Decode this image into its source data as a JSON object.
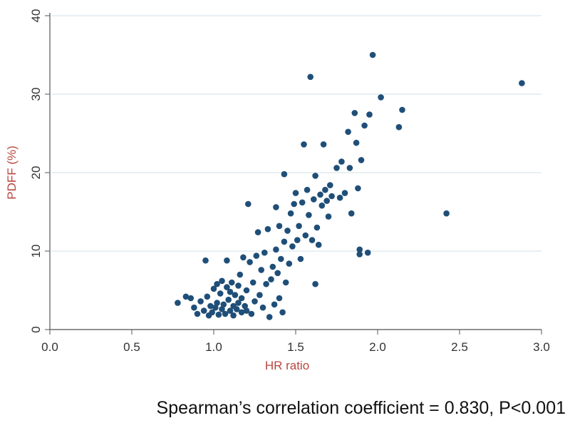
{
  "chart_data": {
    "type": "scatter",
    "title": "",
    "xlabel": "HR ratio",
    "ylabel": "PDFF (%)",
    "xlim": [
      0.0,
      3.0
    ],
    "ylim": [
      0,
      40
    ],
    "xticks": [
      "0.0",
      "0.5",
      "1.0",
      "1.5",
      "2.0",
      "2.5",
      "3.0"
    ],
    "yticks": [
      "0",
      "10",
      "20",
      "30",
      "40"
    ],
    "grid": true,
    "marker_color": "#1f4f78",
    "grid_color": "#d9e6ee",
    "points": [
      [
        0.78,
        3.4
      ],
      [
        0.83,
        4.2
      ],
      [
        0.86,
        4.0
      ],
      [
        0.88,
        2.8
      ],
      [
        0.9,
        2.0
      ],
      [
        0.92,
        3.6
      ],
      [
        0.94,
        2.4
      ],
      [
        0.95,
        8.8
      ],
      [
        0.96,
        4.2
      ],
      [
        0.97,
        1.8
      ],
      [
        0.98,
        3.0
      ],
      [
        0.99,
        2.2
      ],
      [
        1.0,
        5.2
      ],
      [
        1.01,
        2.8
      ],
      [
        1.02,
        3.4
      ],
      [
        1.02,
        5.8
      ],
      [
        1.03,
        1.9
      ],
      [
        1.04,
        4.6
      ],
      [
        1.05,
        2.6
      ],
      [
        1.05,
        6.2
      ],
      [
        1.06,
        3.2
      ],
      [
        1.07,
        2.0
      ],
      [
        1.08,
        5.4
      ],
      [
        1.08,
        8.8
      ],
      [
        1.09,
        3.8
      ],
      [
        1.1,
        2.4
      ],
      [
        1.1,
        4.8
      ],
      [
        1.11,
        6.0
      ],
      [
        1.12,
        3.0
      ],
      [
        1.12,
        1.8
      ],
      [
        1.13,
        4.4
      ],
      [
        1.14,
        2.6
      ],
      [
        1.15,
        5.6
      ],
      [
        1.15,
        3.4
      ],
      [
        1.16,
        7.0
      ],
      [
        1.17,
        2.2
      ],
      [
        1.17,
        4.0
      ],
      [
        1.18,
        9.2
      ],
      [
        1.19,
        3.0
      ],
      [
        1.2,
        2.4
      ],
      [
        1.2,
        5.0
      ],
      [
        1.21,
        16.0
      ],
      [
        1.22,
        8.6
      ],
      [
        1.23,
        2.0
      ],
      [
        1.24,
        6.0
      ],
      [
        1.25,
        3.6
      ],
      [
        1.26,
        9.4
      ],
      [
        1.27,
        12.4
      ],
      [
        1.28,
        4.4
      ],
      [
        1.29,
        7.6
      ],
      [
        1.3,
        2.8
      ],
      [
        1.31,
        9.8
      ],
      [
        1.32,
        5.8
      ],
      [
        1.33,
        12.8
      ],
      [
        1.34,
        1.6
      ],
      [
        1.35,
        6.4
      ],
      [
        1.36,
        8.0
      ],
      [
        1.37,
        3.2
      ],
      [
        1.38,
        10.2
      ],
      [
        1.38,
        15.6
      ],
      [
        1.39,
        7.2
      ],
      [
        1.4,
        4.0
      ],
      [
        1.4,
        13.2
      ],
      [
        1.41,
        9.0
      ],
      [
        1.42,
        2.2
      ],
      [
        1.43,
        11.2
      ],
      [
        1.43,
        19.8
      ],
      [
        1.44,
        6.0
      ],
      [
        1.45,
        12.6
      ],
      [
        1.46,
        8.4
      ],
      [
        1.47,
        14.8
      ],
      [
        1.48,
        10.6
      ],
      [
        1.49,
        16.0
      ],
      [
        1.5,
        17.4
      ],
      [
        1.51,
        11.4
      ],
      [
        1.52,
        13.2
      ],
      [
        1.53,
        9.0
      ],
      [
        1.54,
        16.2
      ],
      [
        1.55,
        23.6
      ],
      [
        1.56,
        12.0
      ],
      [
        1.57,
        17.8
      ],
      [
        1.58,
        14.6
      ],
      [
        1.59,
        32.2
      ],
      [
        1.6,
        11.4
      ],
      [
        1.61,
        16.6
      ],
      [
        1.62,
        5.8
      ],
      [
        1.62,
        19.6
      ],
      [
        1.63,
        13.0
      ],
      [
        1.64,
        10.8
      ],
      [
        1.65,
        17.2
      ],
      [
        1.66,
        15.8
      ],
      [
        1.67,
        23.6
      ],
      [
        1.68,
        17.8
      ],
      [
        1.69,
        16.4
      ],
      [
        1.7,
        14.4
      ],
      [
        1.71,
        18.4
      ],
      [
        1.72,
        17.0
      ],
      [
        1.75,
        20.6
      ],
      [
        1.77,
        16.8
      ],
      [
        1.78,
        21.4
      ],
      [
        1.8,
        17.4
      ],
      [
        1.82,
        25.2
      ],
      [
        1.83,
        20.6
      ],
      [
        1.84,
        14.8
      ],
      [
        1.86,
        27.6
      ],
      [
        1.87,
        23.8
      ],
      [
        1.88,
        18.0
      ],
      [
        1.89,
        10.2
      ],
      [
        1.89,
        9.6
      ],
      [
        1.9,
        21.6
      ],
      [
        1.92,
        26.0
      ],
      [
        1.94,
        9.8
      ],
      [
        1.95,
        27.4
      ],
      [
        1.97,
        35.0
      ],
      [
        2.02,
        29.6
      ],
      [
        2.13,
        25.8
      ],
      [
        2.15,
        28.0
      ],
      [
        2.42,
        14.8
      ],
      [
        2.88,
        31.4
      ]
    ]
  },
  "caption": "Spearman’s correlation coefficient = 0.830, P<0.001"
}
